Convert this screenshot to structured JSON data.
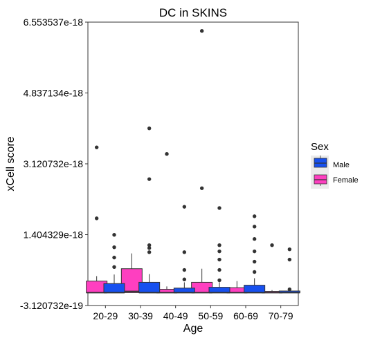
{
  "chart_data": {
    "type": "boxplot",
    "title": "DC in SKINS",
    "xlabel": "Age",
    "ylabel": "xCell score",
    "ylim": [
      -3.120732e-19,
      6.553537e-18
    ],
    "yticks": [
      "-3.120732e-19",
      "1.404329e-18",
      "3.120732e-18",
      "4.837134e-18",
      "6.553537e-18"
    ],
    "ytick_values": [
      -3.120732e-19,
      1.404329e-18,
      3.120732e-18,
      4.837134e-18,
      6.553537e-18
    ],
    "categories": [
      "20-29",
      "30-39",
      "40-49",
      "50-59",
      "60-69",
      "70-79"
    ],
    "legend": {
      "title": "Sex",
      "position": "right",
      "entries": [
        {
          "label": "Male",
          "color": "#1750ef"
        },
        {
          "label": "Female",
          "color": "#fe3fc0"
        }
      ]
    },
    "series": [
      {
        "name": "Female",
        "color": "#fe3fc0",
        "boxes": [
          {
            "min": 0,
            "q1": 0,
            "median": 0,
            "q3": 2.8e-19,
            "max": 4e-19,
            "outliers": [
              1.8e-18,
              3.52e-18
            ]
          },
          {
            "min": 0,
            "q1": 0,
            "median": 3e-20,
            "q3": 5.8e-19,
            "max": 9.5e-19,
            "outliers": []
          },
          {
            "min": 0,
            "q1": 0,
            "median": 0,
            "q3": 8e-20,
            "max": 1.5e-19,
            "outliers": [
              3.36e-18
            ]
          },
          {
            "min": 0,
            "q1": 0,
            "median": 0,
            "q3": 2.5e-19,
            "max": 5.8e-19,
            "outliers": [
              2.53e-18,
              6.34e-18
            ]
          },
          {
            "min": 0,
            "q1": 0,
            "median": 0,
            "q3": 1.2e-19,
            "max": 2.8e-19,
            "outliers": []
          },
          {
            "min": 0,
            "q1": 0,
            "median": 0,
            "q3": 3e-20,
            "max": 6e-20,
            "outliers": [
              1.15e-18
            ]
          }
        ]
      },
      {
        "name": "Male",
        "color": "#1750ef",
        "boxes": [
          {
            "min": 0,
            "q1": 0,
            "median": 0,
            "q3": 2.2e-19,
            "max": 4.4e-19,
            "outliers": [
              6.2e-19,
              8.5e-19,
              1.1e-18,
              1.4e-18
            ]
          },
          {
            "min": 0,
            "q1": 0,
            "median": 0,
            "q3": 2.5e-19,
            "max": 4.5e-19,
            "outliers": [
              9.8e-19,
              1.08e-18,
              1.15e-18,
              2.75e-18,
              3.98e-18
            ]
          },
          {
            "min": 0,
            "q1": 0,
            "median": 0,
            "q3": 1.1e-19,
            "max": 2.5e-19,
            "outliers": [
              3.2e-19,
              5.5e-19,
              9.8e-19,
              2.08e-18
            ]
          },
          {
            "min": 0,
            "q1": 0,
            "median": 0,
            "q3": 1.3e-19,
            "max": 2.5e-19,
            "outliers": [
              3e-19,
              5.5e-19,
              8e-19,
              1e-18,
              1.15e-18,
              2.05e-18
            ]
          },
          {
            "min": 0,
            "q1": 0,
            "median": 0,
            "q3": 1.8e-19,
            "max": 3.5e-19,
            "outliers": [
              5e-19,
              7.5e-19,
              1e-18,
              1.3e-18,
              1.6e-18,
              1.85e-18
            ]
          },
          {
            "min": 0,
            "q1": 0,
            "median": 0,
            "q3": 4e-20,
            "max": 7e-20,
            "outliers": [
              8e-20,
              8e-19,
              1.05e-18
            ]
          }
        ]
      }
    ]
  }
}
